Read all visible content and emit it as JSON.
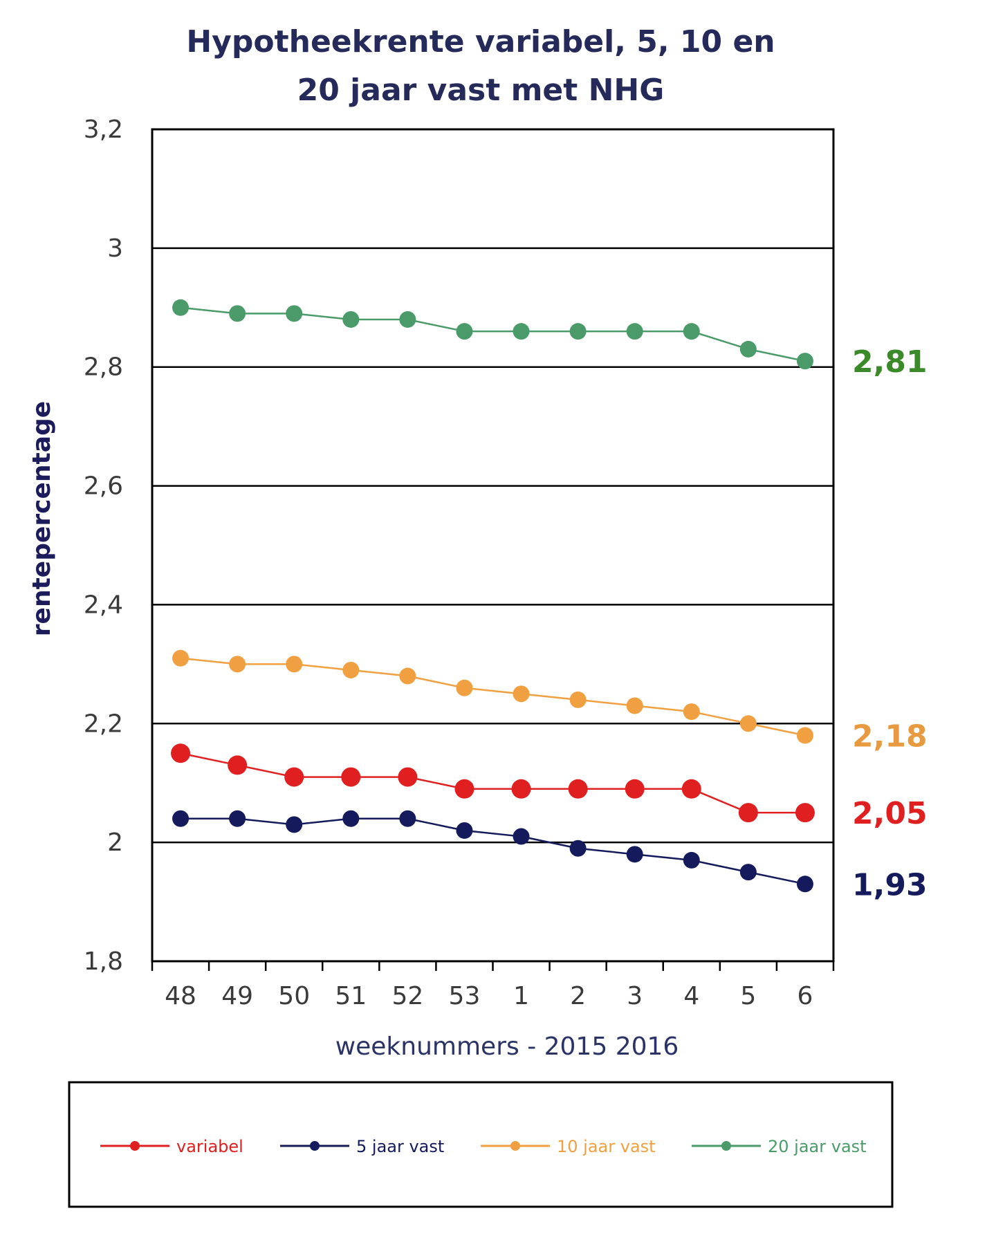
{
  "chart_data": {
    "type": "line",
    "title": [
      "Hypotheekrente variabel, 5, 10 en",
      "20 jaar vast met NHG"
    ],
    "xlabel": "weeknummers - 2015 2016",
    "ylabel": "rentepercentage",
    "categories": [
      "48",
      "49",
      "50",
      "51",
      "52",
      "53",
      "1",
      "2",
      "3",
      "4",
      "5",
      "6"
    ],
    "ylim": [
      1.8,
      3.2
    ],
    "yticks": [
      {
        "value": 1.8,
        "label": "1,8"
      },
      {
        "value": 2.0,
        "label": "2"
      },
      {
        "value": 2.2,
        "label": "2,2"
      },
      {
        "value": 2.4,
        "label": "2,4"
      },
      {
        "value": 2.6,
        "label": "2,6"
      },
      {
        "value": 2.8,
        "label": "2,8"
      },
      {
        "value": 3.0,
        "label": "3"
      },
      {
        "value": 3.2,
        "label": "3,2"
      }
    ],
    "grid": true,
    "legend_position": "bottom",
    "series": [
      {
        "name": "variabel",
        "color": "#e02020",
        "marker": "large",
        "values": [
          2.15,
          2.13,
          2.11,
          2.11,
          2.11,
          2.09,
          2.09,
          2.09,
          2.09,
          2.09,
          2.05,
          2.05
        ],
        "end_label": "2,05"
      },
      {
        "name": "5 jaar vast",
        "color": "#141a5c",
        "marker": "medium",
        "values": [
          2.04,
          2.04,
          2.03,
          2.04,
          2.04,
          2.02,
          2.01,
          1.99,
          1.98,
          1.97,
          1.95,
          1.93
        ],
        "end_label": "1,93"
      },
      {
        "name": "10 jaar vast",
        "color": "#f0a040",
        "marker": "medium",
        "values": [
          2.31,
          2.3,
          2.3,
          2.29,
          2.28,
          2.26,
          2.25,
          2.24,
          2.23,
          2.22,
          2.2,
          2.18
        ],
        "end_label": "2,18"
      },
      {
        "name": "20 jaar vast",
        "color": "#4a9a6a",
        "marker": "medium",
        "values": [
          2.9,
          2.89,
          2.89,
          2.88,
          2.88,
          2.86,
          2.86,
          2.86,
          2.86,
          2.86,
          2.83,
          2.81
        ],
        "end_label": "2,81"
      }
    ],
    "end_label_colors": {
      "variabel": "#e02020",
      "5 jaar vast": "#141a5c",
      "10 jaar vast": "#e89a40",
      "20 jaar vast": "#3a8a2a"
    }
  }
}
